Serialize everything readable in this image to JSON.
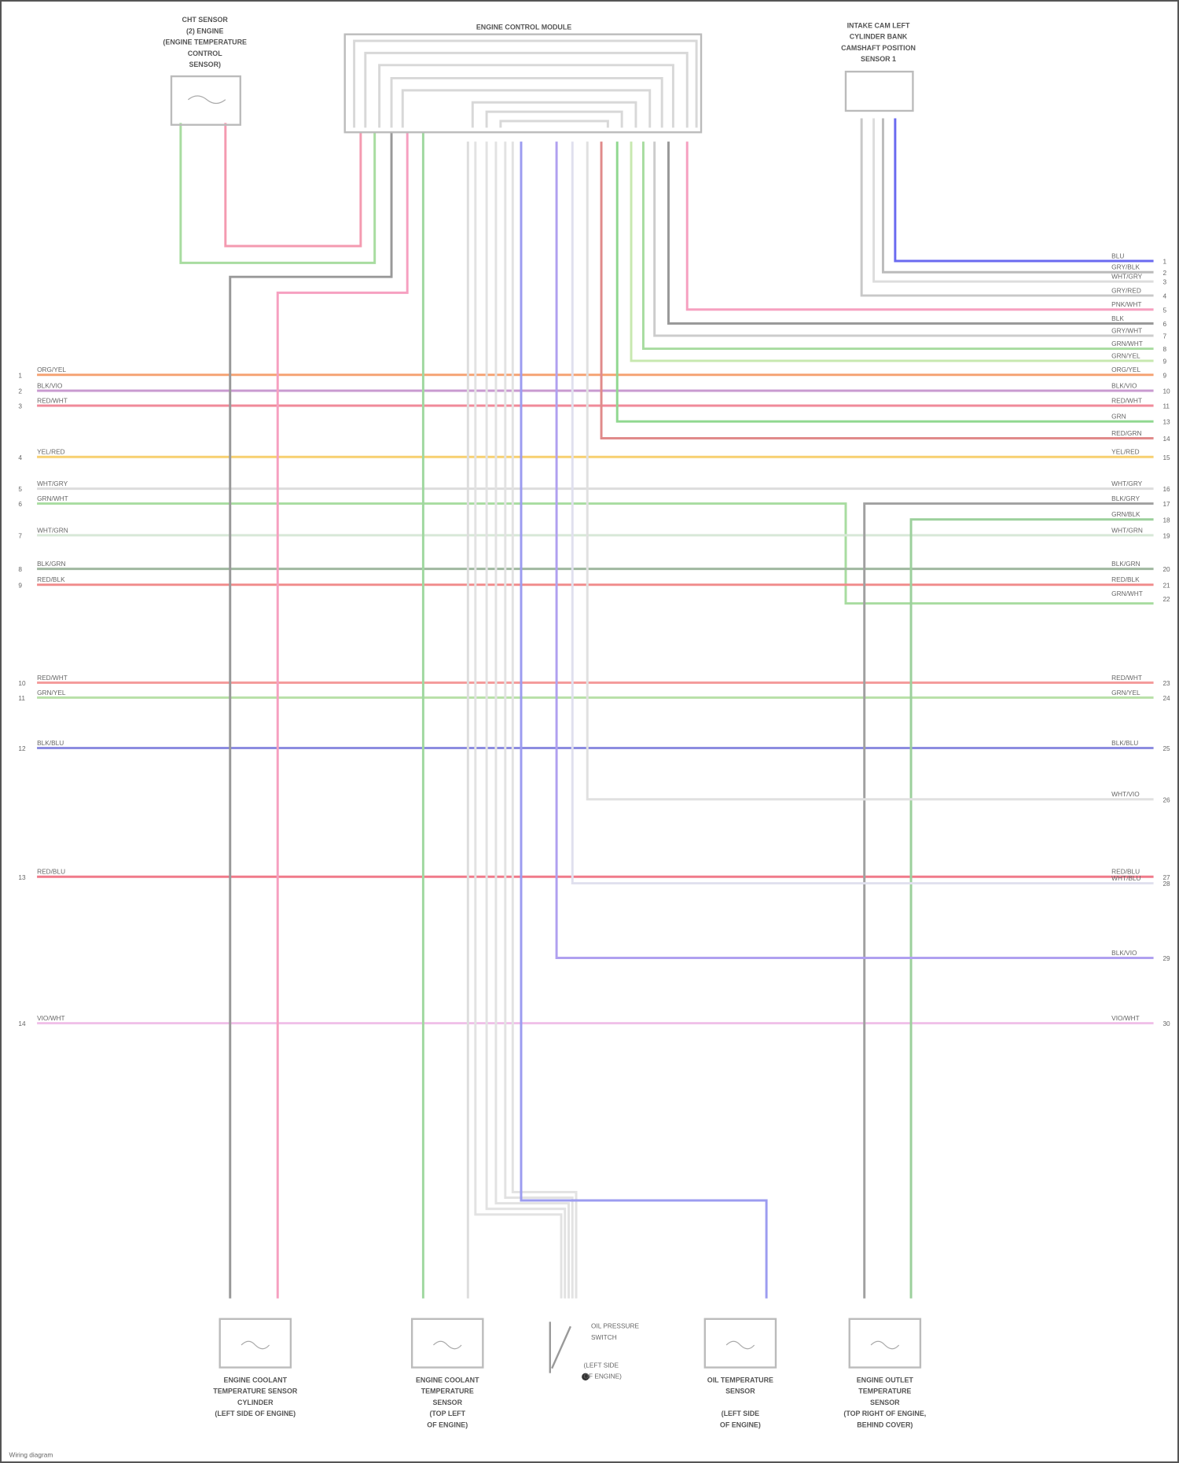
{
  "components": {
    "ecm": "ENGINE CONTROL MODULE",
    "top_left": [
      "CHT SENSOR",
      "(2) ENGINE",
      "(ENGINE TEMPERATURE",
      "CONTROL",
      "SENSOR)"
    ],
    "top_right": [
      "INTAKE CAM LEFT",
      "CYLINDER BANK",
      "CAMSHAFT POSITION",
      "SENSOR 1"
    ],
    "bottom": [
      {
        "lines": [
          "ENGINE COOLANT",
          "TEMPERATURE SENSOR",
          "CYLINDER",
          "(LEFT SIDE OF ENGINE)"
        ]
      },
      {
        "lines": [
          "ENGINE COOLANT",
          "TEMPERATURE",
          "SENSOR",
          "(TOP LEFT",
          "OF ENGINE)"
        ]
      },
      {
        "lines": [
          "OIL PRESSURE",
          "SWITCH",
          "(LEFT SIDE",
          "OF ENGINE)"
        ]
      },
      {
        "lines": [
          "OIL TEMPERATURE",
          "SENSOR",
          "",
          "(LEFT SIDE",
          "OF ENGINE)"
        ]
      },
      {
        "lines": [
          "ENGINE OUTLET",
          "TEMPERATURE",
          "SENSOR",
          "(TOP RIGHT OF ENGINE,",
          "BEHIND COVER)"
        ]
      }
    ]
  },
  "buses": [
    {
      "left_code": "ORG/YEL",
      "left_pin": "1",
      "right_code": "ORG/YEL",
      "right_pin": "9",
      "color": "#f5a070"
    },
    {
      "left_code": "BLK/VIO",
      "left_pin": "2",
      "right_code": "BLK/VIO",
      "right_pin": "10",
      "color": "#c99ad0"
    },
    {
      "left_code": "RED/WHT",
      "left_pin": "3",
      "right_code": "RED/WHT",
      "right_pin": "11",
      "color": "#f08a9a"
    },
    {
      "left_code": "YEL/RED",
      "left_pin": "4",
      "right_code": "YEL/RED",
      "right_pin": "15",
      "color": "#f7d070"
    },
    {
      "left_code": "WHT/GRY",
      "left_pin": "5",
      "right_code": "WHT/GRY",
      "right_pin": "16",
      "color": "#dddddd"
    },
    {
      "left_code": "GRN/WHT",
      "left_pin": "6",
      "right_code": "",
      "right_pin": "",
      "color": "#a8dca0"
    },
    {
      "left_code": "WHT/GRN",
      "left_pin": "7",
      "right_code": "WHT/GRN",
      "right_pin": "19",
      "color": "#d8e8d8"
    },
    {
      "left_code": "BLK/GRN",
      "left_pin": "8",
      "right_code": "BLK/GRN",
      "right_pin": "20",
      "color": "#a0b8a0"
    },
    {
      "left_code": "RED/BLK",
      "left_pin": "9",
      "right_code": "RED/BLK",
      "right_pin": "21",
      "color": "#f08a8a"
    },
    {
      "left_code": "RED/WHT",
      "left_pin": "10",
      "right_code": "RED/WHT",
      "right_pin": "23",
      "color": "#f49a9a"
    },
    {
      "left_code": "GRN/YEL",
      "left_pin": "11",
      "right_code": "GRN/YEL",
      "right_pin": "24",
      "color": "#b8e0a8"
    },
    {
      "left_code": "BLK/BLU",
      "left_pin": "12",
      "right_code": "BLK/BLU",
      "right_pin": "25",
      "color": "#8c8ce0"
    },
    {
      "left_code": "RED/BLU",
      "left_pin": "13",
      "right_code": "RED/BLU",
      "right_pin": "27",
      "color": "#f07a8a"
    },
    {
      "left_code": "VIO/WHT",
      "left_pin": "14",
      "right_code": "VIO/WHT",
      "right_pin": "30",
      "color": "#f0c0e8"
    }
  ],
  "right_only": [
    {
      "code": "BLU",
      "pin": "1",
      "color": "#6a6af0"
    },
    {
      "code": "GRY/BLK",
      "pin": "2",
      "color": "#bbbbbb"
    },
    {
      "code": "WHT/GRY",
      "pin": "3",
      "color": "#dddddd"
    },
    {
      "code": "GRY/RED",
      "pin": "4",
      "color": "#c8c8c8"
    },
    {
      "code": "PNK/WHT",
      "pin": "5",
      "color": "#f6a0c0"
    },
    {
      "code": "BLK",
      "pin": "6",
      "color": "#999999"
    },
    {
      "code": "GRY/WHT",
      "pin": "7",
      "color": "#cccccc"
    },
    {
      "code": "GRN/WHT",
      "pin": "8",
      "color": "#a8dca0"
    },
    {
      "code": "GRN/YEL",
      "pin": "9",
      "color": "#c8e8b0"
    },
    {
      "code": "GRN",
      "pin": "13",
      "color": "#90d890"
    },
    {
      "code": "RED/GRN",
      "pin": "14",
      "color": "#e08a8a"
    },
    {
      "code": "BLK/GRY",
      "pin": "17",
      "color": "#a0a0a0"
    },
    {
      "code": "GRN/BLK",
      "pin": "18",
      "color": "#9cd09c"
    },
    {
      "code": "GRN/WHT",
      "pin": "22",
      "color": "#a8dca0"
    },
    {
      "code": "WHT/VIO",
      "pin": "26",
      "color": "#e0e0e0"
    },
    {
      "code": "WHT/BLU",
      "pin": "28",
      "color": "#e0e0ee"
    },
    {
      "code": "BLK/VIO",
      "pin": "29",
      "color": "#b0a0f0"
    }
  ],
  "footer": "Wiring diagram"
}
